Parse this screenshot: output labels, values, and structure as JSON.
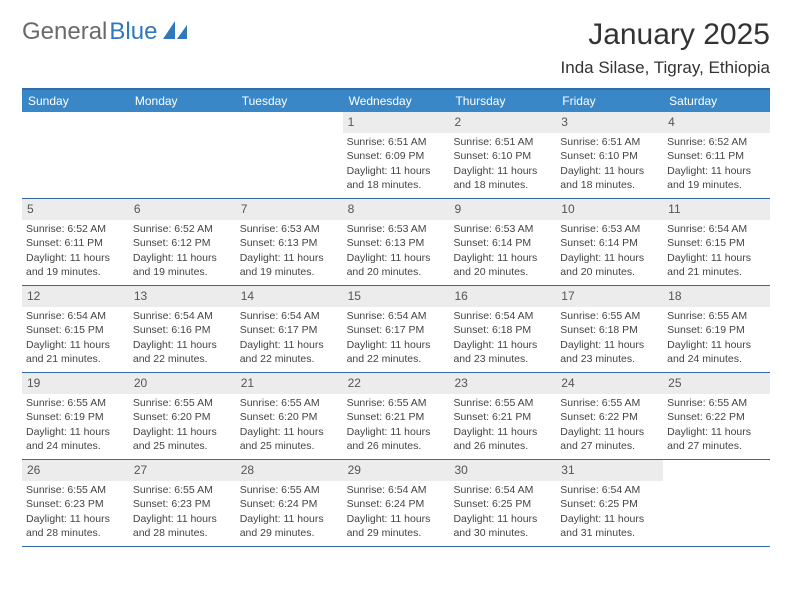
{
  "logo": {
    "text_gray": "General",
    "text_blue": "Blue"
  },
  "title": "January 2025",
  "location": "Inda Silase, Tigray, Ethiopia",
  "colors": {
    "header_bar": "#3a87c8",
    "border": "#326ba8",
    "daynum_bg": "#ececec",
    "logo_gray": "#6a6a6a",
    "logo_blue": "#2f78bd"
  },
  "weekdays": [
    "Sunday",
    "Monday",
    "Tuesday",
    "Wednesday",
    "Thursday",
    "Friday",
    "Saturday"
  ],
  "weeks": [
    [
      {
        "n": "",
        "sr": "",
        "ss": "",
        "dl": ""
      },
      {
        "n": "",
        "sr": "",
        "ss": "",
        "dl": ""
      },
      {
        "n": "",
        "sr": "",
        "ss": "",
        "dl": ""
      },
      {
        "n": "1",
        "sr": "6:51 AM",
        "ss": "6:09 PM",
        "dl": "11 hours and 18 minutes."
      },
      {
        "n": "2",
        "sr": "6:51 AM",
        "ss": "6:10 PM",
        "dl": "11 hours and 18 minutes."
      },
      {
        "n": "3",
        "sr": "6:51 AM",
        "ss": "6:10 PM",
        "dl": "11 hours and 18 minutes."
      },
      {
        "n": "4",
        "sr": "6:52 AM",
        "ss": "6:11 PM",
        "dl": "11 hours and 19 minutes."
      }
    ],
    [
      {
        "n": "5",
        "sr": "6:52 AM",
        "ss": "6:11 PM",
        "dl": "11 hours and 19 minutes."
      },
      {
        "n": "6",
        "sr": "6:52 AM",
        "ss": "6:12 PM",
        "dl": "11 hours and 19 minutes."
      },
      {
        "n": "7",
        "sr": "6:53 AM",
        "ss": "6:13 PM",
        "dl": "11 hours and 19 minutes."
      },
      {
        "n": "8",
        "sr": "6:53 AM",
        "ss": "6:13 PM",
        "dl": "11 hours and 20 minutes."
      },
      {
        "n": "9",
        "sr": "6:53 AM",
        "ss": "6:14 PM",
        "dl": "11 hours and 20 minutes."
      },
      {
        "n": "10",
        "sr": "6:53 AM",
        "ss": "6:14 PM",
        "dl": "11 hours and 20 minutes."
      },
      {
        "n": "11",
        "sr": "6:54 AM",
        "ss": "6:15 PM",
        "dl": "11 hours and 21 minutes."
      }
    ],
    [
      {
        "n": "12",
        "sr": "6:54 AM",
        "ss": "6:15 PM",
        "dl": "11 hours and 21 minutes."
      },
      {
        "n": "13",
        "sr": "6:54 AM",
        "ss": "6:16 PM",
        "dl": "11 hours and 22 minutes."
      },
      {
        "n": "14",
        "sr": "6:54 AM",
        "ss": "6:17 PM",
        "dl": "11 hours and 22 minutes."
      },
      {
        "n": "15",
        "sr": "6:54 AM",
        "ss": "6:17 PM",
        "dl": "11 hours and 22 minutes."
      },
      {
        "n": "16",
        "sr": "6:54 AM",
        "ss": "6:18 PM",
        "dl": "11 hours and 23 minutes."
      },
      {
        "n": "17",
        "sr": "6:55 AM",
        "ss": "6:18 PM",
        "dl": "11 hours and 23 minutes."
      },
      {
        "n": "18",
        "sr": "6:55 AM",
        "ss": "6:19 PM",
        "dl": "11 hours and 24 minutes."
      }
    ],
    [
      {
        "n": "19",
        "sr": "6:55 AM",
        "ss": "6:19 PM",
        "dl": "11 hours and 24 minutes."
      },
      {
        "n": "20",
        "sr": "6:55 AM",
        "ss": "6:20 PM",
        "dl": "11 hours and 25 minutes."
      },
      {
        "n": "21",
        "sr": "6:55 AM",
        "ss": "6:20 PM",
        "dl": "11 hours and 25 minutes."
      },
      {
        "n": "22",
        "sr": "6:55 AM",
        "ss": "6:21 PM",
        "dl": "11 hours and 26 minutes."
      },
      {
        "n": "23",
        "sr": "6:55 AM",
        "ss": "6:21 PM",
        "dl": "11 hours and 26 minutes."
      },
      {
        "n": "24",
        "sr": "6:55 AM",
        "ss": "6:22 PM",
        "dl": "11 hours and 27 minutes."
      },
      {
        "n": "25",
        "sr": "6:55 AM",
        "ss": "6:22 PM",
        "dl": "11 hours and 27 minutes."
      }
    ],
    [
      {
        "n": "26",
        "sr": "6:55 AM",
        "ss": "6:23 PM",
        "dl": "11 hours and 28 minutes."
      },
      {
        "n": "27",
        "sr": "6:55 AM",
        "ss": "6:23 PM",
        "dl": "11 hours and 28 minutes."
      },
      {
        "n": "28",
        "sr": "6:55 AM",
        "ss": "6:24 PM",
        "dl": "11 hours and 29 minutes."
      },
      {
        "n": "29",
        "sr": "6:54 AM",
        "ss": "6:24 PM",
        "dl": "11 hours and 29 minutes."
      },
      {
        "n": "30",
        "sr": "6:54 AM",
        "ss": "6:25 PM",
        "dl": "11 hours and 30 minutes."
      },
      {
        "n": "31",
        "sr": "6:54 AM",
        "ss": "6:25 PM",
        "dl": "11 hours and 31 minutes."
      },
      {
        "n": "",
        "sr": "",
        "ss": "",
        "dl": ""
      }
    ]
  ],
  "labels": {
    "sunrise": "Sunrise: ",
    "sunset": "Sunset: ",
    "daylight": "Daylight: "
  }
}
